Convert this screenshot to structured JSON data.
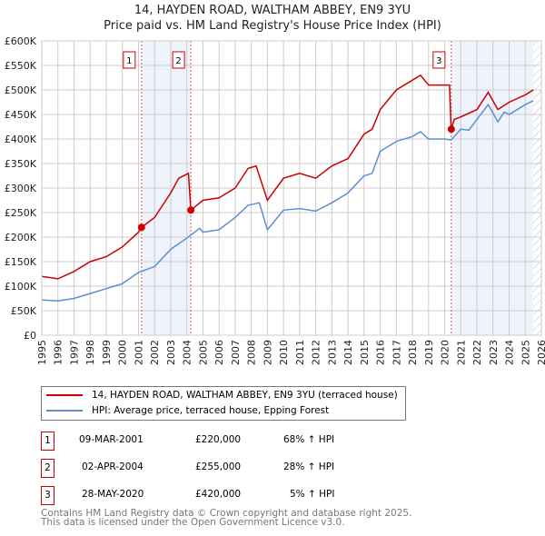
{
  "chart_data": {
    "type": "line",
    "title": "14, HAYDEN ROAD, WALTHAM ABBEY, EN9 3YU",
    "subtitle": "Price paid vs. HM Land Registry's House Price Index (HPI)",
    "xlim": [
      1995,
      2026
    ],
    "ylim": [
      0,
      600000
    ],
    "x_ticks": [
      "1995",
      "1996",
      "1997",
      "1998",
      "1999",
      "2000",
      "2001",
      "2002",
      "2003",
      "2004",
      "2005",
      "2006",
      "2007",
      "2008",
      "2009",
      "2010",
      "2011",
      "2012",
      "2013",
      "2014",
      "2015",
      "2016",
      "2017",
      "2018",
      "2019",
      "2020",
      "2021",
      "2022",
      "2023",
      "2024",
      "2025",
      "2026"
    ],
    "y_ticks": [
      "£0",
      "£50K",
      "£100K",
      "£150K",
      "£200K",
      "£250K",
      "£300K",
      "£350K",
      "£400K",
      "£450K",
      "£500K",
      "£550K",
      "£600K"
    ],
    "grid": true,
    "series": [
      {
        "name": "14, HAYDEN ROAD, WALTHAM ABBEY, EN9 3YU (terraced house)",
        "color": "#cc0000",
        "x": [
          1995,
          1996,
          1997,
          1998,
          1999,
          2000,
          2001,
          2001.2,
          2002,
          2003,
          2003.5,
          2004.1,
          2004.25,
          2005,
          2006,
          2007,
          2007.8,
          2008.3,
          2009,
          2010,
          2011,
          2012,
          2013,
          2014,
          2015,
          2015.5,
          2016,
          2017,
          2018,
          2018.5,
          2019,
          2020.3,
          2020.4,
          2020.6,
          2021,
          2022,
          2022.7,
          2023.3,
          2024,
          2025,
          2025.5
        ],
        "y": [
          120000,
          115000,
          130000,
          150000,
          160000,
          180000,
          210000,
          220000,
          240000,
          290000,
          320000,
          330000,
          255000,
          275000,
          280000,
          300000,
          340000,
          345000,
          275000,
          320000,
          330000,
          320000,
          345000,
          360000,
          410000,
          420000,
          460000,
          500000,
          520000,
          530000,
          510000,
          510000,
          420000,
          440000,
          445000,
          460000,
          495000,
          460000,
          475000,
          490000,
          500000
        ]
      },
      {
        "name": "HPI: Average price, terraced house, Epping Forest",
        "color": "#5b8fd0",
        "x": [
          1995,
          1996,
          1997,
          1998,
          1999,
          2000,
          2001,
          2002,
          2003,
          2004,
          2004.8,
          2005,
          2006,
          2007,
          2007.8,
          2008.5,
          2009,
          2010,
          2011,
          2012,
          2013,
          2014,
          2015,
          2015.5,
          2016,
          2017,
          2018,
          2018.5,
          2019,
          2020,
          2020.4,
          2021,
          2021.5,
          2022,
          2022.7,
          2023.3,
          2023.7,
          2024,
          2025,
          2025.5
        ],
        "y": [
          72000,
          70000,
          75000,
          85000,
          95000,
          105000,
          128000,
          140000,
          175000,
          198000,
          218000,
          210000,
          215000,
          240000,
          265000,
          270000,
          215000,
          255000,
          258000,
          253000,
          270000,
          290000,
          325000,
          330000,
          375000,
          395000,
          405000,
          415000,
          400000,
          400000,
          398000,
          420000,
          418000,
          440000,
          470000,
          435000,
          455000,
          450000,
          470000,
          478000
        ]
      }
    ],
    "sales": [
      {
        "label": "1",
        "x": 2001.19,
        "y": 220000,
        "date": "09-MAR-2001",
        "price": "£220,000",
        "hpi": "68% ↑ HPI"
      },
      {
        "label": "2",
        "x": 2004.25,
        "y": 255000,
        "date": "02-APR-2004",
        "price": "£255,000",
        "hpi": "28% ↑ HPI"
      },
      {
        "label": "3",
        "x": 2020.41,
        "y": 420000,
        "date": "28-MAY-2020",
        "price": "£420,000",
        "hpi": "5% ↑ HPI"
      }
    ],
    "shaded_ranges": [
      [
        2001.19,
        2004.25
      ],
      [
        2020.41,
        2025.5
      ]
    ],
    "forecast_start": 2025.5,
    "legend_position": "below"
  },
  "footer": [
    "Contains HM Land Registry data © Crown copyright and database right 2025.",
    "This data is licensed under the Open Government Licence v3.0."
  ]
}
